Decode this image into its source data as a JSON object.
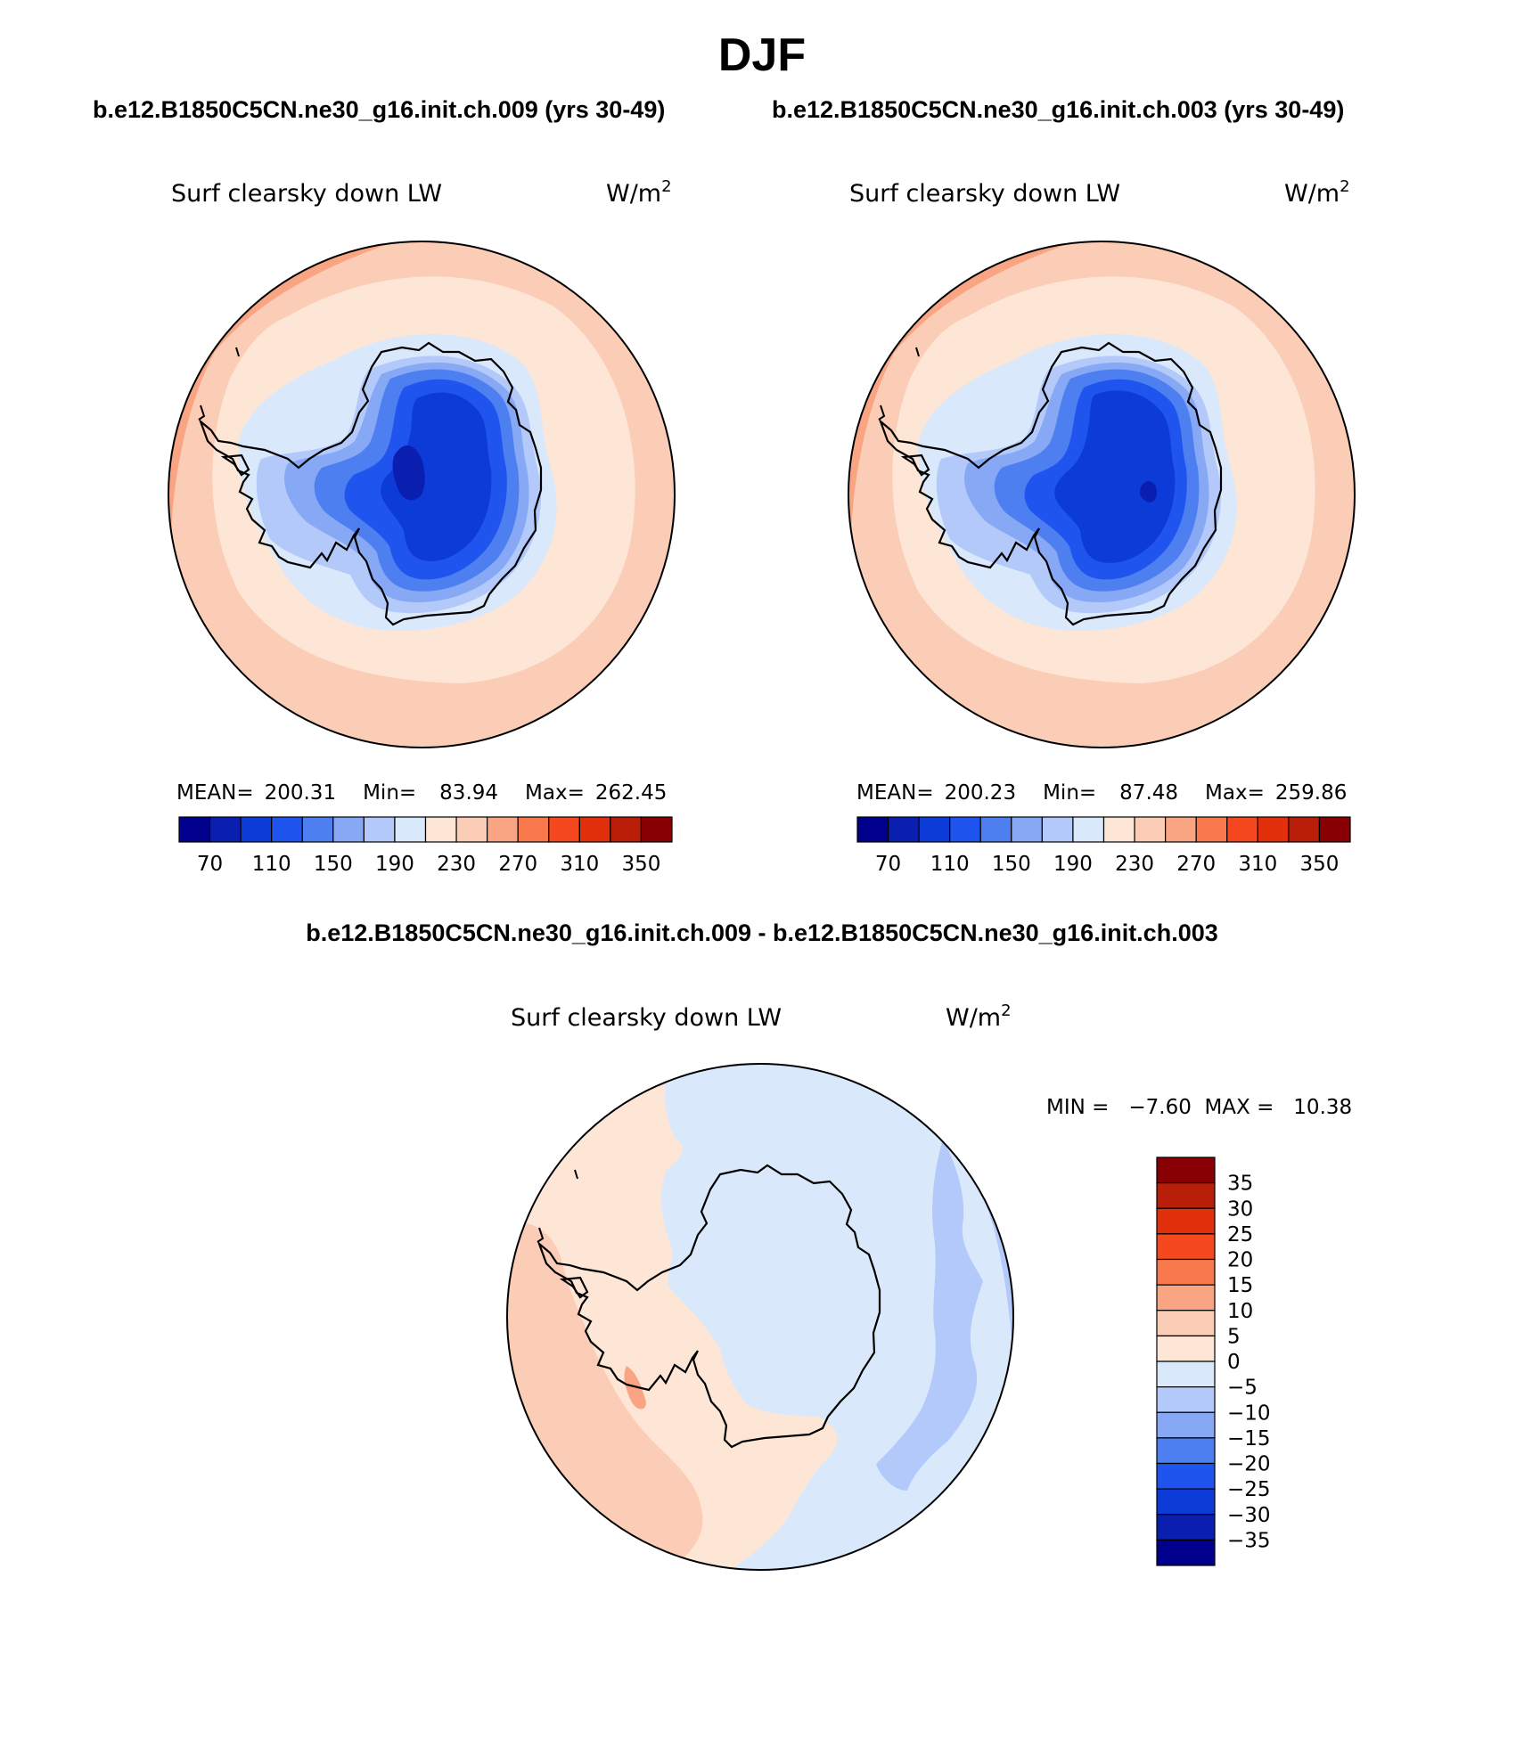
{
  "season": "DJF",
  "case_a_title": "b.e12.B1850C5CN.ne30_g16.init.ch.009 (yrs 30-49)",
  "case_b_title": "b.e12.B1850C5CN.ne30_g16.init.ch.003 (yrs 30-49)",
  "diff_title": "b.e12.B1850C5CN.ne30_g16.init.ch.009 - b.e12.B1850C5CN.ne30_g16.init.ch.003",
  "panel_a": {
    "variable": "Surf clearsky down LW",
    "units": "W/m",
    "units_sup": "2",
    "stats": {
      "mean_label": "MEAN=",
      "mean": "200.31",
      "min_label": "Min=",
      "min": "83.94",
      "max_label": "Max=",
      "max": "262.45"
    }
  },
  "panel_b": {
    "variable": "Surf clearsky down LW",
    "units": "W/m",
    "units_sup": "2",
    "stats": {
      "mean_label": "MEAN=",
      "mean": "200.23",
      "min_label": "Min=",
      "min": "87.48",
      "max_label": "Max=",
      "max": "259.86"
    }
  },
  "panel_diff": {
    "variable": "Surf clearsky down LW",
    "units": "W/m",
    "units_sup": "2",
    "range_text": "MIN =   −7.60  MAX =   10.38"
  },
  "colorbar_abs": {
    "colors": [
      "#00008c",
      "#0a1fb0",
      "#0d3bd8",
      "#1f55ee",
      "#4d7ff0",
      "#86a8f5",
      "#b3c9fa",
      "#dae8fc",
      "#fde6d6",
      "#fccdb6",
      "#f9a584",
      "#f87a4c",
      "#f5481e",
      "#e22f0c",
      "#b81e08",
      "#880004"
    ],
    "tick_labels": [
      "70",
      "110",
      "150",
      "190",
      "230",
      "270",
      "310",
      "350"
    ]
  },
  "colorbar_diff": {
    "colors_top_to_bottom": [
      "#880004",
      "#b81e08",
      "#e22f0c",
      "#f5481e",
      "#f87a4c",
      "#f9a584",
      "#fccdb6",
      "#fde6d6",
      "#dae8fc",
      "#b3c9fa",
      "#86a8f5",
      "#4d7ff0",
      "#1f55ee",
      "#0d3bd8",
      "#0a1fb0",
      "#00008c"
    ],
    "tick_labels": [
      "35",
      "30",
      "25",
      "20",
      "15",
      "10",
      "5",
      "0",
      "−5",
      "−10",
      "−15",
      "−20",
      "−25",
      "−30",
      "−35"
    ]
  }
}
